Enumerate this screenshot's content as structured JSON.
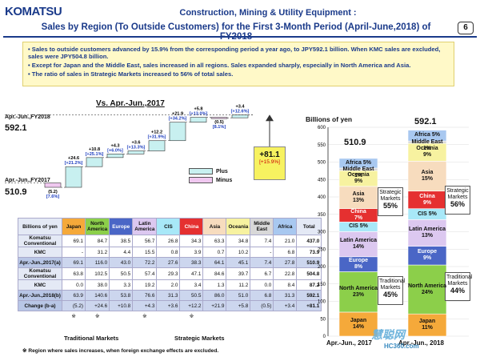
{
  "header": {
    "logo": "KOMATSU",
    "title_line1": "Construction, Mining & Utility Equipment :",
    "title_line2": "Sales by Region (To Outside Customers) for the First 3-Month Period (April-June,2018) of FY2018",
    "page_number": "6"
  },
  "notes": [
    "Sales to outside customers advanced by 15.9% from the corresponding period a year ago, to JPY592.1 billion.  When KMC sales are excluded, sales were JPY504.8 billion.",
    "Except for Japan and the Middle East, sales increased in all regions. Sales expanded sharply, especially in North America and Asia.",
    "The ratio of sales in Strategic Markets increased to 56% of total sales."
  ],
  "colors": {
    "plus": "#c8f0f0",
    "minus": "#f0c8f0",
    "japan": "#f5a93a",
    "north_america": "#8ccf4a",
    "europe": "#4a66c6",
    "latin_america": "#dcc8f0",
    "cis": "#a8e8f8",
    "china": "#e53030",
    "asia": "#f7dcbe",
    "oceania": "#f7f2a0",
    "middle_east": "#d8d8d8",
    "africa": "#a8c8f0"
  },
  "waterfall": {
    "title": "Vs. Apr.-Jun.,2017",
    "start_label": "Apr.-Jun.,FY2017",
    "start_value": "510.9",
    "end_label": "Apr.-Jun.,FY2018",
    "end_value": "592.1",
    "legend_plus": "Plus",
    "legend_minus": "Minus",
    "total_change": "+81.1",
    "total_change_pct": "[+15.9%]",
    "steps": [
      {
        "region": "Japan",
        "change": -5.2,
        "label": "(5.2)",
        "pct": "[7.6%]"
      },
      {
        "region": "North America",
        "change": 24.6,
        "label": "+24.6",
        "pct": "[+21.2%]"
      },
      {
        "region": "Europe",
        "change": 10.8,
        "label": "+10.8",
        "pct": "[+25.1%]"
      },
      {
        "region": "Latin America",
        "change": 4.3,
        "label": "+4.3",
        "pct": "[+6.0%]"
      },
      {
        "region": "CIS",
        "change": 3.6,
        "label": "+3.6",
        "pct": "[+13.3%]"
      },
      {
        "region": "China",
        "change": 12.2,
        "label": "+12.2",
        "pct": "[+31.9%]"
      },
      {
        "region": "Asia",
        "change": 21.9,
        "label": "+21.9",
        "pct": "[+34.2%]"
      },
      {
        "region": "Oceania",
        "change": 5.8,
        "label": "+5.8",
        "pct": "[+13.0%]"
      },
      {
        "region": "Middle East",
        "change": -0.5,
        "label": "(0.5)",
        "pct": "[8.1%]"
      },
      {
        "region": "Africa",
        "change": 3.4,
        "label": "+3.4",
        "pct": "[+12.6%]"
      }
    ]
  },
  "table": {
    "headers": [
      "Billions of yen",
      "Japan",
      "North America",
      "Europe",
      "Latin America",
      "CIS",
      "China",
      "Asia",
      "Oceania",
      "Middle East",
      "Africa",
      "Total"
    ],
    "rows": [
      {
        "label": "Komatsu Conventional",
        "values": [
          "69.1",
          "84.7",
          "38.5",
          "56.7",
          "26.8",
          "34.3",
          "63.3",
          "34.8",
          "7.4",
          "21.0",
          "437.0"
        ],
        "shade": false
      },
      {
        "label": "KMC",
        "values": [
          "-",
          "31.2",
          "4.4",
          "15.5",
          "0.8",
          "3.9",
          "0.7",
          "10.2",
          "-",
          "6.8",
          "73.9"
        ],
        "shade": false
      },
      {
        "label": "Apr.-Jun.,2017(a)",
        "values": [
          "69.1",
          "116.0",
          "43.0",
          "72.2",
          "27.6",
          "38.3",
          "64.1",
          "45.1",
          "7.4",
          "27.8",
          "510.9"
        ],
        "shade": true
      },
      {
        "label": "Komatsu Conventional",
        "values": [
          "63.8",
          "102.5",
          "50.5",
          "57.4",
          "29.3",
          "47.1",
          "84.6",
          "39.7",
          "6.7",
          "22.8",
          "504.8"
        ],
        "shade": false
      },
      {
        "label": "KMC",
        "values": [
          "0.0",
          "38.0",
          "3.3",
          "19.2",
          "2.0",
          "3.4",
          "1.3",
          "11.2",
          "0.0",
          "8.4",
          "87.2"
        ],
        "shade": false
      },
      {
        "label": "Apr.-Jun.,2018(b)",
        "values": [
          "63.9",
          "140.6",
          "53.8",
          "76.6",
          "31.3",
          "50.5",
          "86.0",
          "51.0",
          "6.8",
          "31.3",
          "592.1"
        ],
        "shade": true
      },
      {
        "label": "Change (b-a)",
        "values": [
          "(5.2)",
          "+24.6",
          "+10.8",
          "+4.3",
          "+3.6",
          "+12.2",
          "+21.9",
          "+5.8",
          "(0.5)",
          "+3.4",
          "+81.1"
        ],
        "shade": true
      }
    ],
    "marks": [
      "",
      "※",
      "※",
      "",
      "※",
      "",
      "※",
      "",
      "",
      "",
      ""
    ],
    "bracket_traditional": "Traditional Markets",
    "bracket_strategic": "Strategic Markets",
    "footnote": "※ Region where sales increases, when foreign exchange effects are excluded."
  },
  "stacked": {
    "ylabel": "Billions of yen",
    "ticks": [
      0,
      50,
      100,
      150,
      200,
      250,
      300,
      350,
      400,
      450,
      500,
      550,
      600
    ],
    "x_labels": [
      "Apr.-Jun., 2017",
      "Apr.-Jun., 2018"
    ],
    "totals": [
      "510.9",
      "592.1"
    ],
    "callouts_2017": {
      "strategic": "Strategic Markets",
      "strategic_pct": "55%",
      "traditional": "Traditional Markets",
      "traditional_pct": "45%"
    },
    "callouts_2018": {
      "strategic": "Strategic Markets",
      "strategic_pct": "56%",
      "traditional": "Traditional Markets",
      "traditional_pct": "44%"
    }
  },
  "chart_data": [
    {
      "type": "bar",
      "title": "Vs. Apr.-Jun.,2017",
      "categories": [
        "Apr.-Jun.,FY2017",
        "Japan",
        "North America",
        "Europe",
        "Latin America",
        "CIS",
        "China",
        "Asia",
        "Oceania",
        "Middle East",
        "Africa",
        "Apr.-Jun.,FY2018"
      ],
      "values": [
        510.9,
        -5.2,
        24.6,
        10.8,
        4.3,
        3.6,
        12.2,
        21.9,
        5.8,
        -0.5,
        3.4,
        592.1
      ]
    },
    {
      "type": "bar",
      "ylabel": "Billions of yen",
      "ylim": [
        0,
        600
      ],
      "categories": [
        "Apr.-Jun., 2017",
        "Apr.-Jun., 2018"
      ],
      "series": [
        {
          "name": "Japan",
          "values": [
            69.1,
            63.9
          ],
          "pct": [
            "14%",
            "11%"
          ]
        },
        {
          "name": "North America",
          "values": [
            116.0,
            140.6
          ],
          "pct": [
            "23%",
            "24%"
          ]
        },
        {
          "name": "Europe",
          "values": [
            43.0,
            53.8
          ],
          "pct": [
            "8%",
            "9%"
          ]
        },
        {
          "name": "Latin America",
          "values": [
            72.2,
            76.6
          ],
          "pct": [
            "14%",
            "13%"
          ]
        },
        {
          "name": "CIS",
          "values": [
            27.6,
            31.3
          ],
          "pct": [
            "5%",
            "5%"
          ]
        },
        {
          "name": "China",
          "values": [
            38.3,
            50.5
          ],
          "pct": [
            "7%",
            "9%"
          ]
        },
        {
          "name": "Asia",
          "values": [
            64.1,
            86.0
          ],
          "pct": [
            "13%",
            "15%"
          ]
        },
        {
          "name": "Oceania",
          "values": [
            45.1,
            51.0
          ],
          "pct": [
            "9%",
            "9%"
          ]
        },
        {
          "name": "Middle East",
          "values": [
            7.4,
            6.8
          ],
          "pct": [
            "1%",
            "1%"
          ]
        },
        {
          "name": "Africa",
          "values": [
            27.8,
            31.3
          ],
          "pct": [
            "5%",
            "5%"
          ]
        }
      ]
    }
  ],
  "watermark": {
    "text": "慧聪网",
    "sub": "HC360.com"
  }
}
